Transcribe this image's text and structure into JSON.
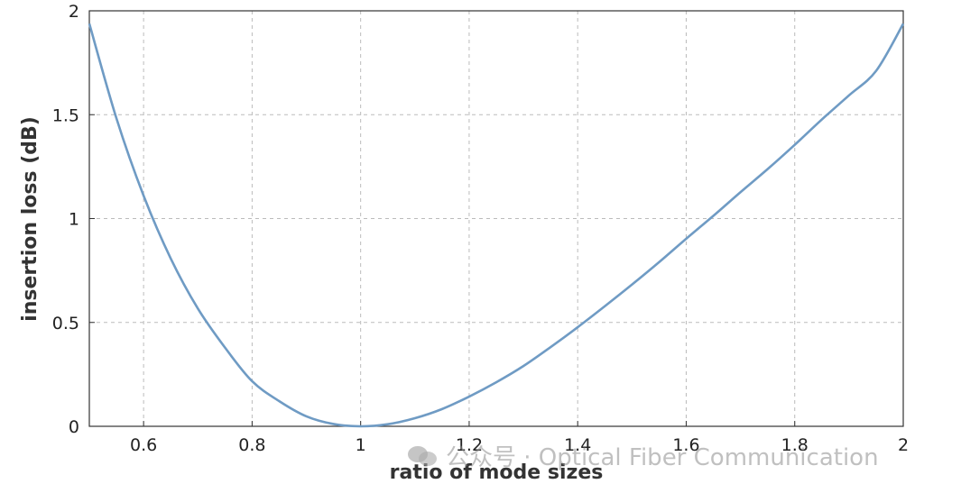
{
  "chart_data": {
    "type": "line",
    "title": "",
    "xlabel": "ratio of mode sizes",
    "ylabel": "insertion loss (dB)",
    "xlim": [
      0.5,
      2
    ],
    "ylim": [
      0,
      2
    ],
    "xticks": [
      "0.6",
      "0.8",
      "1",
      "1.2",
      "1.4",
      "1.6",
      "1.8",
      "2"
    ],
    "xtick_values": [
      0.6,
      0.8,
      1,
      1.2,
      1.4,
      1.6,
      1.8,
      2
    ],
    "yticks": [
      "0",
      "0.5",
      "1",
      "1.5",
      "2"
    ],
    "ytick_values": [
      0,
      0.5,
      1,
      1.5,
      2
    ],
    "grid": true,
    "line_color": "#6f9bc4",
    "series": [
      {
        "x": [
          0.5,
          0.55,
          0.6,
          0.65,
          0.7,
          0.75,
          0.8,
          0.85,
          0.9,
          0.95,
          1.0,
          1.05,
          1.1,
          1.15,
          1.2,
          1.25,
          1.3,
          1.35,
          1.4,
          1.45,
          1.5,
          1.55,
          1.6,
          1.65,
          1.7,
          1.75,
          1.8,
          1.85,
          1.9,
          1.95,
          2.0
        ],
        "y": [
          1.938,
          1.482,
          1.11,
          0.808,
          0.567,
          0.379,
          0.217,
          0.121,
          0.048,
          0.011,
          0.0,
          0.01,
          0.039,
          0.083,
          0.143,
          0.212,
          0.29,
          0.381,
          0.477,
          0.578,
          0.682,
          0.79,
          0.903,
          1.013,
          1.127,
          1.238,
          1.355,
          1.477,
          1.593,
          1.711,
          1.938
        ]
      }
    ]
  },
  "watermark": {
    "text": "公众号 · Optical Fiber Communication"
  }
}
